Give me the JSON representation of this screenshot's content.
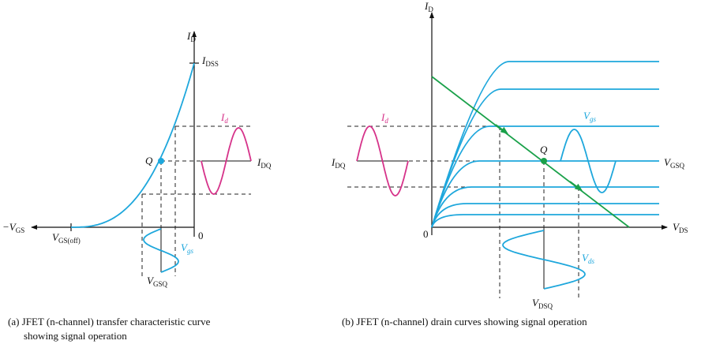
{
  "left": {
    "id_axis": {
      "symbol": "I",
      "sub": "D"
    },
    "idss": {
      "symbol": "I",
      "sub": "DSS"
    },
    "neg_vgs": {
      "symbol": "−V",
      "sub": "GS"
    },
    "vgs_off": {
      "symbol": "V",
      "sub": "GS(off)"
    },
    "origin": "0",
    "q": "Q",
    "id_signal": {
      "symbol": "I",
      "sub": "d"
    },
    "idq": {
      "symbol": "I",
      "sub": "DQ"
    },
    "vgs_signal": {
      "symbol": "V",
      "sub": "gs"
    },
    "vgsq": {
      "symbol": "V",
      "sub": "GSQ"
    },
    "caption": [
      "(a) JFET (n-channel) transfer characteristic curve",
      "showing signal operation"
    ]
  },
  "right": {
    "id_axis": {
      "symbol": "I",
      "sub": "D"
    },
    "vds_axis": {
      "symbol": "V",
      "sub": "DS"
    },
    "origin": "0",
    "id_signal": {
      "symbol": "I",
      "sub": "d"
    },
    "idq": {
      "symbol": "I",
      "sub": "DQ"
    },
    "vgs_signal": {
      "symbol": "V",
      "sub": "gs"
    },
    "q": "Q",
    "vgsq": {
      "symbol": "V",
      "sub": "GSQ"
    },
    "vds_signal": {
      "symbol": "V",
      "sub": "ds"
    },
    "vdsq": {
      "symbol": "V",
      "sub": "DSQ"
    },
    "caption": "(b) JFET (n-channel) drain curves showing signal operation"
  }
}
